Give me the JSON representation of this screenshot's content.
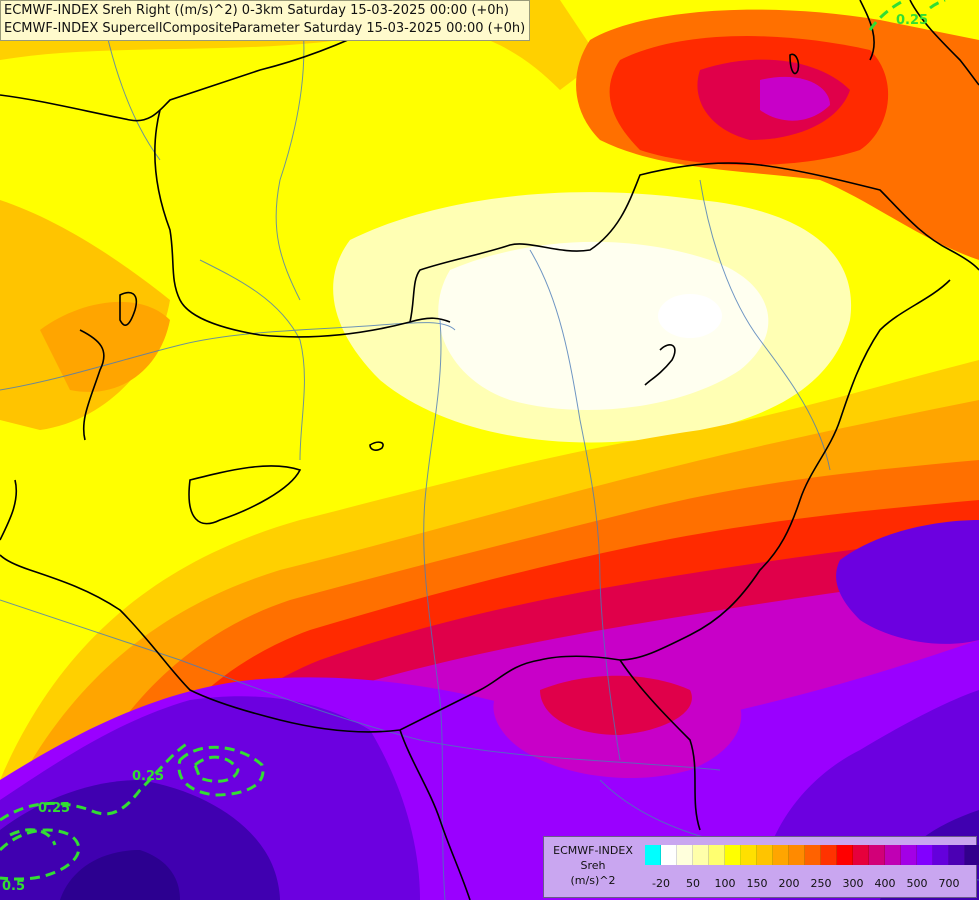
{
  "titles": {
    "line1": "ECMWF-INDEX Sreh Right ((m/s)^2) 0-3km Saturday 15-03-2025 00:00 (+0h)",
    "line2": "ECMWF-INDEX SupercellCompositeParameter Saturday 15-03-2025 00:00 (+0h)"
  },
  "legend": {
    "title_lines": [
      "ECMWF-INDEX",
      "Sreh",
      "(m/s)^2"
    ],
    "colors": [
      "#00ffff",
      "#ffffff",
      "#ffffdc",
      "#ffffaa",
      "#ffff70",
      "#ffff00",
      "#ffe000",
      "#ffc400",
      "#ffa500",
      "#ff8a00",
      "#ff6200",
      "#ff3300",
      "#ff0000",
      "#e6003c",
      "#d20078",
      "#c000b4",
      "#a300e6",
      "#8200ff",
      "#6400dc",
      "#4b00b4",
      "#32008c"
    ],
    "ticks": [
      "-20",
      "50",
      "100",
      "150",
      "200",
      "250",
      "300",
      "400",
      "500",
      "700"
    ]
  },
  "contour_labels": [
    "0.25",
    "0.25",
    "0.25",
    "0.5"
  ],
  "palette": {
    "light": "#fffff0",
    "pale": "#ffffb4",
    "yellow": "#ffff00",
    "gold": "#ffd000",
    "orange": "#ffa500",
    "dark_orange": "#ff7000",
    "red": "#ff2a00",
    "crimson": "#e0004a",
    "magenta": "#c800c8",
    "violet": "#9a00ff",
    "purple": "#6c00e0",
    "indigo": "#4000b0",
    "navy": "#2c0090",
    "border": "#000000",
    "river": "#4a7ab8",
    "contour": "#33dd33"
  }
}
